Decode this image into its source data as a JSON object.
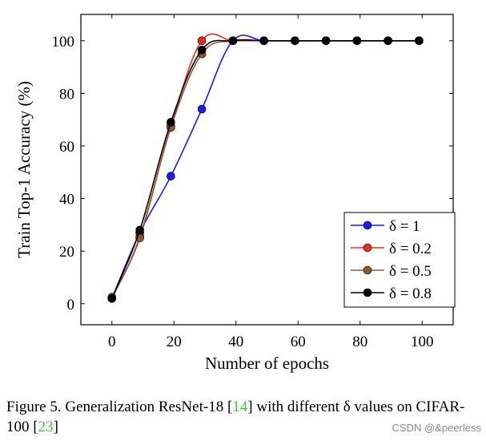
{
  "chart_data": {
    "type": "line",
    "xlabel": "Number of epochs",
    "ylabel": "Train Top-1 Accuracy (%)",
    "xlim": [
      -10,
      110
    ],
    "ylim": [
      -8,
      110
    ],
    "xticks": [
      0,
      20,
      40,
      60,
      80,
      100
    ],
    "yticks": [
      0,
      20,
      40,
      60,
      80,
      100
    ],
    "grid": false,
    "legend_position": "bottom-right",
    "series": [
      {
        "name": "δ = 1",
        "color": "#1a1aff",
        "x": [
          0,
          9,
          19,
          29,
          39,
          49,
          59,
          69,
          79,
          89,
          99
        ],
        "y": [
          2,
          27,
          48.5,
          74,
          100,
          100,
          100,
          100,
          100,
          100,
          100
        ]
      },
      {
        "name": "δ = 0.2",
        "color": "#e8301c",
        "x": [
          0,
          9,
          19,
          29,
          39,
          49,
          59,
          69,
          79,
          89,
          99
        ],
        "y": [
          2,
          25.5,
          67.5,
          100,
          100,
          100,
          100,
          100,
          100,
          100,
          100
        ]
      },
      {
        "name": "δ = 0.5",
        "color": "#8b5a2b",
        "x": [
          0,
          9,
          19,
          29,
          39,
          49,
          59,
          69,
          79,
          89,
          99
        ],
        "y": [
          2.5,
          25,
          67,
          95,
          100,
          100,
          100,
          100,
          100,
          100,
          100
        ]
      },
      {
        "name": "δ = 0.8",
        "color": "#000000",
        "x": [
          0,
          9,
          19,
          29,
          39,
          49,
          59,
          69,
          79,
          89,
          99
        ],
        "y": [
          2,
          28,
          69,
          96.5,
          100,
          100,
          100,
          100,
          100,
          100,
          100
        ]
      }
    ]
  },
  "caption": {
    "prefix": "Figure 5.  Generalization ResNet-18 [",
    "ref1": "14",
    "middle": "] with different δ values on CIFAR-100 [",
    "ref2": "23",
    "suffix": "]"
  },
  "watermark": "CSDN @&peerless"
}
